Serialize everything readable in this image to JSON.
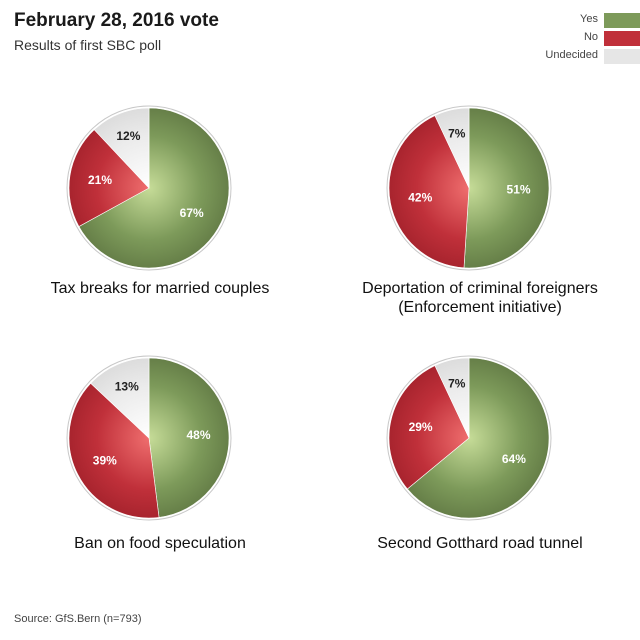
{
  "header": {
    "title": "February 28, 2016 vote",
    "subtitle": "Results of first SBC poll"
  },
  "legend": [
    {
      "label": "Yes",
      "color": "#7d9a5a"
    },
    {
      "label": "No",
      "color": "#c0303a"
    },
    {
      "label": "Undecided",
      "color": "#e6e6e6"
    }
  ],
  "chart_data": [
    {
      "type": "pie",
      "title": "Tax breaks for married couples",
      "slices": [
        {
          "name": "Yes",
          "value": 67,
          "label": "67%"
        },
        {
          "name": "No",
          "value": 21,
          "label": "21%"
        },
        {
          "name": "Undecided",
          "value": 12,
          "label": "12%"
        }
      ]
    },
    {
      "type": "pie",
      "title": "Deportation of criminal foreigners\n(Enforcement initiative)",
      "slices": [
        {
          "name": "Yes",
          "value": 51,
          "label": "51%"
        },
        {
          "name": "No",
          "value": 42,
          "label": "42%"
        },
        {
          "name": "Undecided",
          "value": 7,
          "label": "7%"
        }
      ]
    },
    {
      "type": "pie",
      "title": "Ban on food speculation",
      "slices": [
        {
          "name": "Yes",
          "value": 48,
          "label": "48%"
        },
        {
          "name": "No",
          "value": 39,
          "label": "39%"
        },
        {
          "name": "Undecided",
          "value": 13,
          "label": "13%"
        }
      ]
    },
    {
      "type": "pie",
      "title": "Second Gotthard road tunnel",
      "slices": [
        {
          "name": "Yes",
          "value": 64,
          "label": "64%"
        },
        {
          "name": "No",
          "value": 29,
          "label": "29%"
        },
        {
          "name": "Undecided",
          "value": 7,
          "label": "7%"
        }
      ]
    }
  ],
  "footer": {
    "source": "Source: GfS.Bern (n=793)"
  }
}
